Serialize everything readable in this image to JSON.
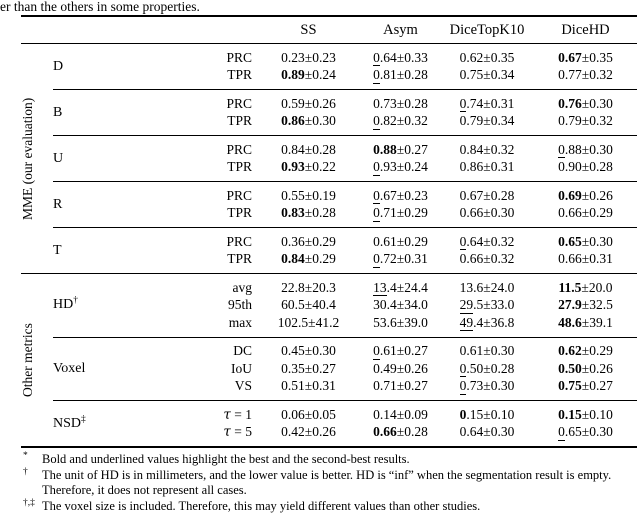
{
  "caption_fragment": "er than the others in some properties.",
  "colors": {
    "text": "#000000",
    "background": "#ffffff",
    "rule": "#000000"
  },
  "style_legend": {
    "b": "bold mean = best",
    "ui": "underlined integer part = second-best",
    "bi": "bold integer part",
    "n": "normal"
  },
  "table": {
    "column_headers": [
      "SS",
      "Asym",
      "DiceTopK10",
      "DiceHD"
    ],
    "sections": [
      {
        "label": "MME (our evaluation)",
        "groups": [
          {
            "label": "D",
            "sup": "",
            "rows": [
              {
                "sub": "PRC",
                "cells": [
                  {
                    "m": "0.23",
                    "p": "0.23",
                    "s": "n"
                  },
                  {
                    "m": "0.64",
                    "p": "0.33",
                    "s": "ui"
                  },
                  {
                    "m": "0.62",
                    "p": "0.35",
                    "s": "n"
                  },
                  {
                    "m": "0.67",
                    "p": "0.35",
                    "s": "b"
                  }
                ]
              },
              {
                "sub": "TPR",
                "cells": [
                  {
                    "m": "0.89",
                    "p": "0.24",
                    "s": "b"
                  },
                  {
                    "m": "0.81",
                    "p": "0.28",
                    "s": "ui"
                  },
                  {
                    "m": "0.75",
                    "p": "0.34",
                    "s": "n"
                  },
                  {
                    "m": "0.77",
                    "p": "0.32",
                    "s": "n"
                  }
                ]
              }
            ]
          },
          {
            "label": "B",
            "sup": "",
            "rows": [
              {
                "sub": "PRC",
                "cells": [
                  {
                    "m": "0.59",
                    "p": "0.26",
                    "s": "n"
                  },
                  {
                    "m": "0.73",
                    "p": "0.28",
                    "s": "n"
                  },
                  {
                    "m": "0.74",
                    "p": "0.31",
                    "s": "ui"
                  },
                  {
                    "m": "0.76",
                    "p": "0.30",
                    "s": "b"
                  }
                ]
              },
              {
                "sub": "TPR",
                "cells": [
                  {
                    "m": "0.86",
                    "p": "0.30",
                    "s": "b"
                  },
                  {
                    "m": "0.82",
                    "p": "0.32",
                    "s": "ui"
                  },
                  {
                    "m": "0.79",
                    "p": "0.34",
                    "s": "n"
                  },
                  {
                    "m": "0.79",
                    "p": "0.32",
                    "s": "n"
                  }
                ]
              }
            ]
          },
          {
            "label": "U",
            "sup": "",
            "rows": [
              {
                "sub": "PRC",
                "cells": [
                  {
                    "m": "0.84",
                    "p": "0.28",
                    "s": "n"
                  },
                  {
                    "m": "0.88",
                    "p": "0.27",
                    "s": "b"
                  },
                  {
                    "m": "0.84",
                    "p": "0.32",
                    "s": "n"
                  },
                  {
                    "m": "0.88",
                    "p": "0.30",
                    "s": "ui"
                  }
                ]
              },
              {
                "sub": "TPR",
                "cells": [
                  {
                    "m": "0.93",
                    "p": "0.22",
                    "s": "b"
                  },
                  {
                    "m": "0.93",
                    "p": "0.24",
                    "s": "ui"
                  },
                  {
                    "m": "0.86",
                    "p": "0.31",
                    "s": "n"
                  },
                  {
                    "m": "0.90",
                    "p": "0.28",
                    "s": "n"
                  }
                ]
              }
            ]
          },
          {
            "label": "R",
            "sup": "",
            "rows": [
              {
                "sub": "PRC",
                "cells": [
                  {
                    "m": "0.55",
                    "p": "0.19",
                    "s": "n"
                  },
                  {
                    "m": "0.67",
                    "p": "0.23",
                    "s": "ui"
                  },
                  {
                    "m": "0.67",
                    "p": "0.28",
                    "s": "n"
                  },
                  {
                    "m": "0.69",
                    "p": "0.26",
                    "s": "b"
                  }
                ]
              },
              {
                "sub": "TPR",
                "cells": [
                  {
                    "m": "0.83",
                    "p": "0.28",
                    "s": "b"
                  },
                  {
                    "m": "0.71",
                    "p": "0.29",
                    "s": "ui"
                  },
                  {
                    "m": "0.66",
                    "p": "0.30",
                    "s": "n"
                  },
                  {
                    "m": "0.66",
                    "p": "0.29",
                    "s": "n"
                  }
                ]
              }
            ]
          },
          {
            "label": "T",
            "sup": "",
            "rows": [
              {
                "sub": "PRC",
                "cells": [
                  {
                    "m": "0.36",
                    "p": "0.29",
                    "s": "n"
                  },
                  {
                    "m": "0.61",
                    "p": "0.29",
                    "s": "n"
                  },
                  {
                    "m": "0.64",
                    "p": "0.32",
                    "s": "ui"
                  },
                  {
                    "m": "0.65",
                    "p": "0.30",
                    "s": "b"
                  }
                ]
              },
              {
                "sub": "TPR",
                "cells": [
                  {
                    "m": "0.84",
                    "p": "0.29",
                    "s": "b"
                  },
                  {
                    "m": "0.72",
                    "p": "0.31",
                    "s": "ui"
                  },
                  {
                    "m": "0.66",
                    "p": "0.32",
                    "s": "n"
                  },
                  {
                    "m": "0.66",
                    "p": "0.31",
                    "s": "n"
                  }
                ]
              }
            ]
          }
        ]
      },
      {
        "label": "Other metrics",
        "groups": [
          {
            "label": "HD",
            "sup": "†",
            "rows": [
              {
                "sub": "avg",
                "cells": [
                  {
                    "m": "22.8",
                    "p": "20.3",
                    "s": "n"
                  },
                  {
                    "m": "13.4",
                    "p": "24.4",
                    "s": "ui"
                  },
                  {
                    "m": "13.6",
                    "p": "24.0",
                    "s": "n"
                  },
                  {
                    "m": "11.5",
                    "p": "20.0",
                    "s": "b"
                  }
                ]
              },
              {
                "sub": "95th",
                "cells": [
                  {
                    "m": "60.5",
                    "p": "40.4",
                    "s": "n"
                  },
                  {
                    "m": "30.4",
                    "p": "34.0",
                    "s": "n"
                  },
                  {
                    "m": "29.5",
                    "p": "33.0",
                    "s": "ui"
                  },
                  {
                    "m": "27.9",
                    "p": "32.5",
                    "s": "b"
                  }
                ]
              },
              {
                "sub": "max",
                "cells": [
                  {
                    "m": "102.5",
                    "p": "41.2",
                    "s": "n"
                  },
                  {
                    "m": "53.6",
                    "p": "39.0",
                    "s": "n"
                  },
                  {
                    "m": "49.4",
                    "p": "36.8",
                    "s": "ui"
                  },
                  {
                    "m": "48.6",
                    "p": "39.1",
                    "s": "b"
                  }
                ]
              }
            ]
          },
          {
            "label": "Voxel",
            "sup": "",
            "rows": [
              {
                "sub": "DC",
                "cells": [
                  {
                    "m": "0.45",
                    "p": "0.30",
                    "s": "n"
                  },
                  {
                    "m": "0.61",
                    "p": "0.27",
                    "s": "ui"
                  },
                  {
                    "m": "0.61",
                    "p": "0.30",
                    "s": "n"
                  },
                  {
                    "m": "0.62",
                    "p": "0.29",
                    "s": "b"
                  }
                ]
              },
              {
                "sub": "IoU",
                "cells": [
                  {
                    "m": "0.35",
                    "p": "0.27",
                    "s": "n"
                  },
                  {
                    "m": "0.49",
                    "p": "0.26",
                    "s": "n"
                  },
                  {
                    "m": "0.50",
                    "p": "0.28",
                    "s": "ui"
                  },
                  {
                    "m": "0.50",
                    "p": "0.26",
                    "s": "b"
                  }
                ]
              },
              {
                "sub": "VS",
                "cells": [
                  {
                    "m": "0.51",
                    "p": "0.31",
                    "s": "n"
                  },
                  {
                    "m": "0.71",
                    "p": "0.27",
                    "s": "n"
                  },
                  {
                    "m": "0.73",
                    "p": "0.30",
                    "s": "ui"
                  },
                  {
                    "m": "0.75",
                    "p": "0.27",
                    "s": "b"
                  }
                ]
              }
            ]
          },
          {
            "label": "NSD",
            "sup": "‡",
            "rows": [
              {
                "sub": "τ = 1",
                "cells": [
                  {
                    "m": "0.06",
                    "p": "0.05",
                    "s": "n"
                  },
                  {
                    "m": "0.14",
                    "p": "0.09",
                    "s": "n"
                  },
                  {
                    "m": "0.15",
                    "p": "0.10",
                    "s": "bi"
                  },
                  {
                    "m": "0.15",
                    "p": "0.10",
                    "s": "b"
                  }
                ]
              },
              {
                "sub": "τ = 5",
                "cells": [
                  {
                    "m": "0.42",
                    "p": "0.26",
                    "s": "n"
                  },
                  {
                    "m": "0.66",
                    "p": "0.28",
                    "s": "b"
                  },
                  {
                    "m": "0.64",
                    "p": "0.30",
                    "s": "n"
                  },
                  {
                    "m": "0.65",
                    "p": "0.30",
                    "s": "ui"
                  }
                ]
              }
            ]
          }
        ]
      }
    ]
  },
  "footnotes": [
    {
      "marker": "*",
      "text": "Bold and underlined values highlight the best and the second-best results."
    },
    {
      "marker": "†",
      "text": "The unit of HD is in millimeters, and the lower value is better. HD is “inf” when the segmentation result is empty. Therefore, it does not represent all cases."
    },
    {
      "marker": "†,‡",
      "text": "The voxel size is included. Therefore, this may yield different values than other studies."
    }
  ]
}
